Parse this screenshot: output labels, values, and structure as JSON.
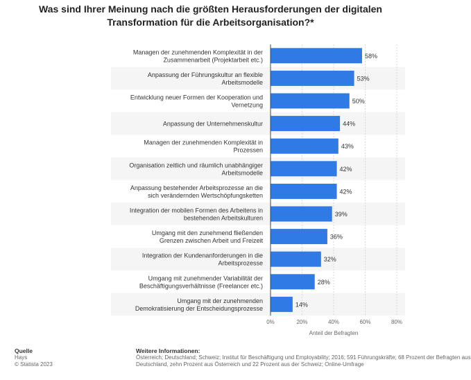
{
  "title_lines": [
    "Was sind Ihrer Meinung nach die größten Herausforderungen der digitalen",
    "Transformation für die Arbeitsorganisation?*"
  ],
  "chart_data": {
    "type": "bar",
    "orientation": "horizontal",
    "title": "Was sind Ihrer Meinung nach die größten Herausforderungen der digitalen Transformation für die Arbeitsorganisation?*",
    "categories": [
      [
        "Managen der zunehmenden Komplexität in der",
        "Zusammenarbeit (Projektarbeit etc.)"
      ],
      [
        "Anpassung der Führungskultur an flexible",
        "Arbeitsmodelle"
      ],
      [
        "Entwicklung neuer Formen der Kooperation und",
        "Vernetzung"
      ],
      [
        "Anpassung der Unternehmenskultur"
      ],
      [
        "Managen der zunehmenden Komplexität in",
        "Prozessen"
      ],
      [
        "Organisation zeitlich und räumlich unabhängiger",
        "Arbeitsmodelle"
      ],
      [
        "Anpassung bestehender Arbeitsprozesse an die",
        "sich verändernden Wertschöpfungsketten"
      ],
      [
        "Integration der mobilen Formen des Arbeitens in",
        "bestehenden Arbeitskulturen"
      ],
      [
        "Umgang mit den zunehmend fließenden",
        "Grenzen zwischen Arbeit und Freizeit"
      ],
      [
        "Integration der Kundenanforderungen in die",
        "Arbeitsprozesse"
      ],
      [
        "Umgang mit zunehmender Variabilität der",
        "Beschäftigungsverhältnisse (Freelancer etc.)"
      ],
      [
        "Umgang mit der zunehmenden",
        "Demokratisierung der Entscheidungsprozesse"
      ]
    ],
    "values": [
      58,
      53,
      50,
      44,
      43,
      42,
      42,
      39,
      36,
      32,
      28,
      14
    ],
    "value_labels": [
      "58%",
      "53%",
      "50%",
      "44%",
      "43%",
      "42%",
      "42%",
      "39%",
      "36%",
      "32%",
      "28%",
      "14%"
    ],
    "xlim": [
      0,
      80
    ],
    "xticks": [
      0,
      20,
      40,
      60,
      80
    ],
    "xtick_labels": [
      "0%",
      "20%",
      "40%",
      "60%",
      "80%"
    ],
    "xlabel": "Anteil der Befragten",
    "ylabel": "",
    "grid": true,
    "bar_color": "#2f7ae5",
    "row_band_color": "#f5f5f5"
  },
  "footer": {
    "source_heading": "Quelle",
    "source_name": "Hays",
    "copyright": "© Statista 2023",
    "info_heading": "Weitere Informationen:",
    "info_line1": "Österreich; Deutschland; Schweiz; Institut für Beschäftigung und Employability; 2016; 591 Führungskräfte; 68 Prozent der Befragten aus",
    "info_line2": "Deutschland, zehn Prozent aus Österreich und 22 Prozent aus der Schweiz; Online-Umfrage"
  }
}
